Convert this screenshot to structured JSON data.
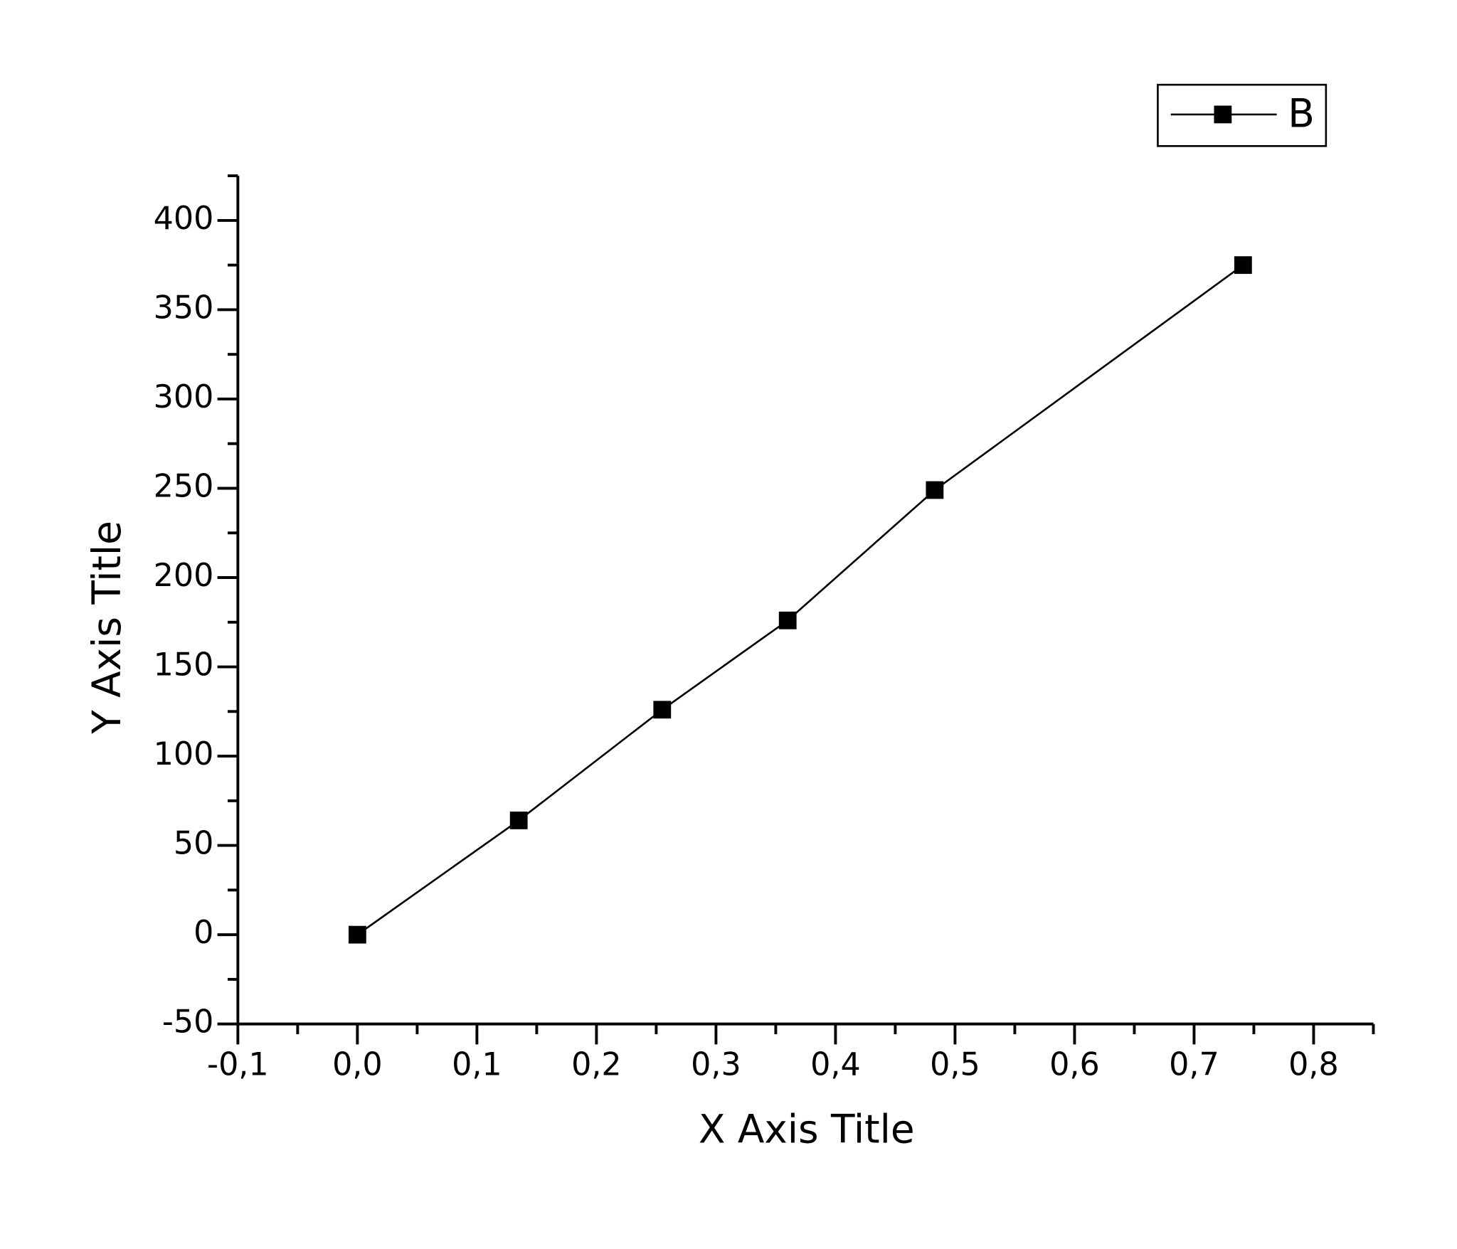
{
  "chart_data": {
    "type": "line",
    "x_label": "X Axis Title",
    "y_label": "Y Axis Title",
    "series": [
      {
        "name": "B",
        "color": "#000000",
        "marker": "square",
        "x": [
          0.0,
          0.135,
          0.255,
          0.36,
          0.483,
          0.741
        ],
        "values": [
          0,
          64,
          126,
          176,
          249,
          375
        ]
      }
    ],
    "xlim": [
      -0.1,
      0.85
    ],
    "xticks": [
      {
        "value": -0.1,
        "label": "-0,1"
      },
      {
        "value": 0,
        "label": "0,0"
      },
      {
        "value": 0.1,
        "label": "0,1"
      },
      {
        "value": 0.2,
        "label": "0,2"
      },
      {
        "value": 0.3,
        "label": "0,3"
      },
      {
        "value": 0.4,
        "label": "0,4"
      },
      {
        "value": 0.5,
        "label": "0,5"
      },
      {
        "value": 0.6,
        "label": "0,6"
      },
      {
        "value": 0.7,
        "label": "0,7"
      },
      {
        "value": 0.8,
        "label": "0,8"
      }
    ],
    "ylim": [
      -50,
      425
    ],
    "yticks": [
      -50,
      0,
      50,
      100,
      150,
      200,
      250,
      300,
      350,
      400
    ],
    "grid": false,
    "legend": "top-right"
  }
}
